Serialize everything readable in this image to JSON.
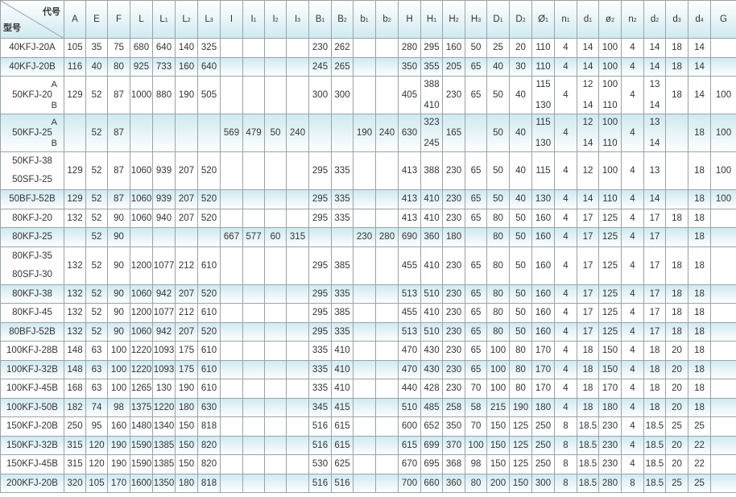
{
  "header": {
    "corner_top": "代号",
    "corner_bottom": "型号",
    "columns": [
      [
        "A",
        ""
      ],
      [
        "E",
        ""
      ],
      [
        "F",
        ""
      ],
      [
        "L",
        ""
      ],
      [
        "L",
        "1"
      ],
      [
        "L",
        "2"
      ],
      [
        "L",
        "3"
      ],
      [
        "I",
        ""
      ],
      [
        "I",
        "1"
      ],
      [
        "I",
        "2"
      ],
      [
        "I",
        "3"
      ],
      [
        "B",
        "1"
      ],
      [
        "B",
        "2"
      ],
      [
        "b",
        "1"
      ],
      [
        "b",
        "2"
      ],
      [
        "H",
        ""
      ],
      [
        "H",
        "1"
      ],
      [
        "H",
        "2"
      ],
      [
        "H",
        "3"
      ],
      [
        "D",
        "1"
      ],
      [
        "D",
        "2"
      ],
      [
        "Ø",
        "1"
      ],
      [
        "n",
        "1"
      ],
      [
        "d",
        "1"
      ],
      [
        "ø",
        "2"
      ],
      [
        "n",
        "2"
      ],
      [
        "d",
        "2"
      ],
      [
        "d",
        "3"
      ],
      [
        "d",
        "4"
      ],
      [
        "G",
        ""
      ]
    ]
  },
  "colors": {
    "row_shade": "#cfe9f1",
    "border": "#9aa3a8"
  },
  "rows": [
    {
      "model": [
        "40KFJ-20A"
      ],
      "cells": [
        "105",
        "35",
        "75",
        "680",
        "640",
        "140",
        "325",
        "",
        "",
        "",
        "",
        "230",
        "262",
        "",
        "",
        "280",
        "295",
        "160",
        "50",
        "25",
        "20",
        "110",
        "4",
        "14",
        "100",
        "4",
        "14",
        "18",
        "14",
        ""
      ]
    },
    {
      "model": [
        "40KFJ-20B"
      ],
      "cells": [
        "116",
        "40",
        "80",
        "925",
        "733",
        "160",
        "640",
        "",
        "",
        "",
        "",
        "245",
        "265",
        "",
        "",
        "350",
        "355",
        "205",
        "65",
        "40",
        "30",
        "110",
        "4",
        "14",
        "100",
        "4",
        "14",
        "18",
        "14",
        ""
      ]
    },
    {
      "model": [
        "50KFJ-20"
      ],
      "suffix": [
        "A",
        "B"
      ],
      "cells": [
        "129",
        "52",
        "87",
        "1000",
        "880",
        "190",
        "505",
        "",
        "",
        "",
        "",
        "300",
        "300",
        "",
        "",
        "405",
        [
          "388",
          "410"
        ],
        "230",
        "65",
        "50",
        "40",
        [
          "115",
          "130"
        ],
        "4",
        [
          "12",
          "14"
        ],
        [
          "100",
          "110"
        ],
        "4",
        [
          "13",
          "14"
        ],
        "18",
        "14",
        "100"
      ]
    },
    {
      "model": [
        "50KFJ-25"
      ],
      "suffix": [
        "A",
        "B"
      ],
      "cells": [
        "",
        "52",
        "87",
        "",
        "",
        "",
        "",
        "569",
        "479",
        "50",
        "240",
        "",
        "",
        "190",
        "240",
        "630",
        [
          "323",
          "245"
        ],
        "165",
        "",
        "50",
        "40",
        [
          "115",
          "130"
        ],
        "4",
        [
          "12",
          "14"
        ],
        [
          "100",
          "110"
        ],
        "4",
        [
          "13",
          "14"
        ],
        "",
        "18",
        "100"
      ]
    },
    {
      "model": [
        "50KFJ-38",
        "50SFJ-25"
      ],
      "cells": [
        "129",
        "52",
        "87",
        "1060",
        "939",
        "207",
        "520",
        "",
        "",
        "",
        "",
        "295",
        "335",
        "",
        "",
        "413",
        "388",
        "230",
        "65",
        "50",
        "40",
        "115",
        "4",
        "12",
        "100",
        "4",
        "13",
        "",
        "18",
        "100"
      ]
    },
    {
      "model": [
        "50BFJ-52B"
      ],
      "cells": [
        "129",
        "52",
        "87",
        "1060",
        "939",
        "207",
        "520",
        "",
        "",
        "",
        "",
        "295",
        "335",
        "",
        "",
        "413",
        "410",
        "230",
        "65",
        "50",
        "40",
        "130",
        "4",
        "14",
        "110",
        "4",
        "14",
        "",
        "18",
        "100"
      ]
    },
    {
      "model": [
        "80KFJ-20"
      ],
      "cells": [
        "132",
        "52",
        "90",
        "1060",
        "940",
        "207",
        "520",
        "",
        "",
        "",
        "",
        "295",
        "335",
        "",
        "",
        "413",
        "410",
        "230",
        "65",
        "80",
        "50",
        "160",
        "4",
        "17",
        "125",
        "4",
        "17",
        "18",
        "18",
        ""
      ]
    },
    {
      "model": [
        "80KFJ-25"
      ],
      "cells": [
        "",
        "52",
        "90",
        "",
        "",
        "",
        "",
        "667",
        "577",
        "60",
        "315",
        "",
        "",
        "230",
        "280",
        "690",
        "360",
        "180",
        "",
        "80",
        "50",
        "160",
        "4",
        "17",
        "125",
        "4",
        "17",
        "",
        "18",
        ""
      ]
    },
    {
      "model": [
        "80KFJ-35",
        "80SFJ-30"
      ],
      "cells": [
        "132",
        "52",
        "90",
        "1200",
        "1077",
        "212",
        "610",
        "",
        "",
        "",
        "",
        "295",
        "385",
        "",
        "",
        "455",
        "410",
        "230",
        "65",
        "80",
        "50",
        "160",
        "4",
        "17",
        "125",
        "4",
        "17",
        "18",
        "18",
        ""
      ]
    },
    {
      "model": [
        "80KFJ-38"
      ],
      "cells": [
        "132",
        "52",
        "90",
        "1060",
        "942",
        "207",
        "520",
        "",
        "",
        "",
        "",
        "295",
        "335",
        "",
        "",
        "513",
        "510",
        "230",
        "65",
        "80",
        "50",
        "160",
        "4",
        "17",
        "125",
        "4",
        "17",
        "18",
        "18",
        ""
      ]
    },
    {
      "model": [
        "80KFJ-45"
      ],
      "cells": [
        "132",
        "52",
        "90",
        "1200",
        "1077",
        "212",
        "610",
        "",
        "",
        "",
        "",
        "295",
        "385",
        "",
        "",
        "455",
        "410",
        "230",
        "65",
        "80",
        "50",
        "160",
        "4",
        "17",
        "125",
        "4",
        "17",
        "18",
        "18",
        ""
      ]
    },
    {
      "model": [
        "80BFJ-52B"
      ],
      "cells": [
        "132",
        "52",
        "90",
        "1060",
        "942",
        "207",
        "520",
        "",
        "",
        "",
        "",
        "295",
        "335",
        "",
        "",
        "513",
        "510",
        "230",
        "65",
        "80",
        "50",
        "160",
        "4",
        "17",
        "125",
        "4",
        "17",
        "18",
        "18",
        ""
      ]
    },
    {
      "model": [
        "100KFJ-28B"
      ],
      "cells": [
        "148",
        "63",
        "100",
        "1220",
        "1093",
        "175",
        "610",
        "",
        "",
        "",
        "",
        "335",
        "410",
        "",
        "",
        "470",
        "430",
        "230",
        "65",
        "100",
        "80",
        "170",
        "4",
        "18",
        "150",
        "4",
        "18",
        "20",
        "18",
        ""
      ]
    },
    {
      "model": [
        "100KFJ-32B"
      ],
      "cells": [
        "148",
        "63",
        "100",
        "1220",
        "1093",
        "175",
        "610",
        "",
        "",
        "",
        "",
        "335",
        "410",
        "",
        "",
        "470",
        "430",
        "230",
        "65",
        "100",
        "80",
        "170",
        "4",
        "18",
        "150",
        "4",
        "18",
        "20",
        "18",
        ""
      ]
    },
    {
      "model": [
        "100KFJ-45B"
      ],
      "cells": [
        "168",
        "63",
        "100",
        "1265",
        "130",
        "190",
        "610",
        "",
        "",
        "",
        "",
        "335",
        "410",
        "",
        "",
        "440",
        "428",
        "230",
        "70",
        "100",
        "80",
        "170",
        "4",
        "18",
        "170",
        "4",
        "18",
        "20",
        "18",
        ""
      ]
    },
    {
      "model": [
        "100KFJ-50B"
      ],
      "cells": [
        "182",
        "74",
        "98",
        "1375",
        "1220",
        "180",
        "630",
        "",
        "",
        "",
        "",
        "345",
        "415",
        "",
        "",
        "510",
        "485",
        "258",
        "58",
        "215",
        "190",
        "180",
        "4",
        "18",
        "180",
        "4",
        "18",
        "20",
        "18",
        ""
      ]
    },
    {
      "model": [
        "150KFJ-20B"
      ],
      "cells": [
        "250",
        "95",
        "160",
        "1480",
        "1340",
        "150",
        "818",
        "",
        "",
        "",
        "",
        "516",
        "615",
        "",
        "",
        "600",
        "652",
        "350",
        "70",
        "150",
        "125",
        "250",
        "8",
        "18.5",
        "230",
        "4",
        "18.5",
        "25",
        "25",
        ""
      ]
    },
    {
      "model": [
        "150KFJ-32B"
      ],
      "cells": [
        "315",
        "120",
        "190",
        "1590",
        "1385",
        "150",
        "820",
        "",
        "",
        "",
        "",
        "516",
        "615",
        "",
        "",
        "615",
        "699",
        "370",
        "100",
        "150",
        "125",
        "250",
        "8",
        "18.5",
        "230",
        "4",
        "18.5",
        "20",
        "22",
        ""
      ]
    },
    {
      "model": [
        "150KFJ-45B"
      ],
      "cells": [
        "315",
        "120",
        "190",
        "1590",
        "1385",
        "150",
        "820",
        "",
        "",
        "",
        "",
        "530",
        "625",
        "",
        "",
        "670",
        "695",
        "368",
        "98",
        "150",
        "125",
        "250",
        "8",
        "18.5",
        "230",
        "4",
        "18.5",
        "20",
        "22",
        ""
      ]
    },
    {
      "model": [
        "200KFJ-20B"
      ],
      "cells": [
        "320",
        "105",
        "170",
        "1600",
        "1350",
        "180",
        "818",
        "",
        "",
        "",
        "",
        "516",
        "516",
        "",
        "",
        "700",
        "660",
        "360",
        "80",
        "200",
        "150",
        "300",
        "8",
        "18.5",
        "280",
        "8",
        "18.5",
        "25",
        "25",
        ""
      ]
    }
  ]
}
